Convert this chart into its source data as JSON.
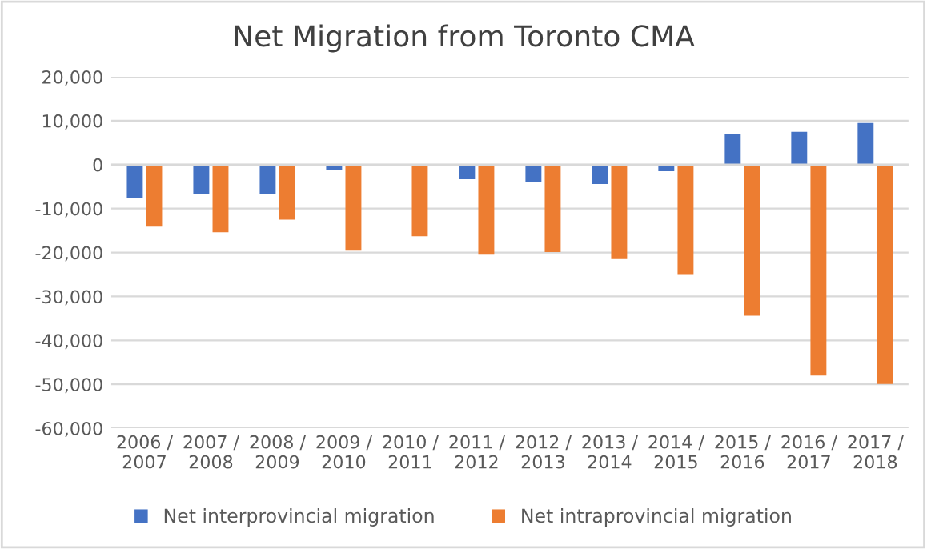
{
  "chart_data": {
    "type": "bar",
    "title": "Net Migration from Toronto CMA",
    "categories": [
      "2006 /\n2007",
      "2007 /\n2008",
      "2008 /\n2009",
      "2009 /\n2010",
      "2010 /\n2011",
      "2011 /\n2012",
      "2012 /\n2013",
      "2013 /\n2014",
      "2014 /\n2015",
      "2015 /\n2016",
      "2016 /\n2017",
      "2017 /\n2018"
    ],
    "series": [
      {
        "name": "Net interprovincial migration",
        "color": "#4472c4",
        "values": [
          -7600,
          -6700,
          -6700,
          -1200,
          0,
          -3300,
          -3900,
          -4400,
          -1500,
          6900,
          7500,
          9500
        ]
      },
      {
        "name": "Net intraprovincial migration",
        "color": "#ed7d31",
        "values": [
          -14100,
          -15400,
          -12500,
          -19600,
          -16300,
          -20500,
          -19900,
          -21500,
          -25100,
          -34400,
          -48000,
          -49900
        ]
      }
    ],
    "ylim": [
      -60000,
      20000
    ],
    "yticks": [
      {
        "value": -60000,
        "label": "-60,000"
      },
      {
        "value": -50000,
        "label": "-50,000"
      },
      {
        "value": -40000,
        "label": "-40,000"
      },
      {
        "value": -30000,
        "label": "-30,000"
      },
      {
        "value": -20000,
        "label": "-20,000"
      },
      {
        "value": -10000,
        "label": "-10,000"
      },
      0,
      {
        "value": 10000,
        "label": "10,000"
      },
      {
        "value": 20000,
        "label": "20,000"
      }
    ],
    "grid": "y",
    "legend": "bottom"
  }
}
